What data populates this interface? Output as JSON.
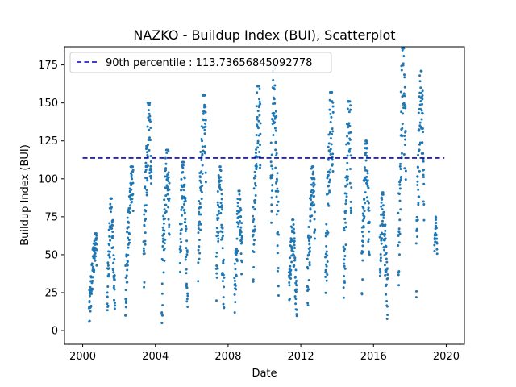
{
  "chart_data": {
    "type": "scatter",
    "title": "NAZKO - Buildup Index (BUI), Scatterplot",
    "xlabel": "Date",
    "ylabel": "Buildup Index (BUI)",
    "xlim": [
      1999.0,
      2021.0
    ],
    "ylim": [
      -9.0,
      187.0
    ],
    "x_ticks": [
      2000,
      2004,
      2008,
      2012,
      2016,
      2020
    ],
    "x_tick_labels": [
      "2000",
      "2004",
      "2008",
      "2012",
      "2016",
      "2020"
    ],
    "y_ticks": [
      0,
      25,
      50,
      75,
      100,
      125,
      150,
      175
    ],
    "y_tick_labels": [
      "0",
      "25",
      "50",
      "75",
      "100",
      "125",
      "150",
      "175"
    ],
    "point_color": "#1f77b4",
    "reference_line": {
      "label": "90th percentile : 113.73656845092778",
      "y": 113.73656845092778,
      "x_range": [
        2000.0,
        2019.9
      ],
      "color": "#0000bb",
      "style": "dashed"
    },
    "legend_position": "top-left",
    "seasons": [
      {
        "year": 2000,
        "start": 2000.35,
        "end": 2000.78,
        "min": 1,
        "max": 64,
        "peak": 0.85
      },
      {
        "year": 2001,
        "start": 2001.35,
        "end": 2001.78,
        "min": 5,
        "max": 87,
        "peak": 0.5
      },
      {
        "year": 2002,
        "start": 2002.35,
        "end": 2002.78,
        "min": 10,
        "max": 108,
        "peak": 0.8
      },
      {
        "year": 2003,
        "start": 2003.35,
        "end": 2003.78,
        "min": 24,
        "max": 150,
        "peak": 0.65
      },
      {
        "year": 2004,
        "start": 2004.35,
        "end": 2004.78,
        "min": 5,
        "max": 119,
        "peak": 0.7
      },
      {
        "year": 2005,
        "start": 2005.35,
        "end": 2005.78,
        "min": 11,
        "max": 111,
        "peak": 0.4
      },
      {
        "year": 2006,
        "start": 2006.35,
        "end": 2006.78,
        "min": 30,
        "max": 155,
        "peak": 0.75
      },
      {
        "year": 2007,
        "start": 2007.35,
        "end": 2007.78,
        "min": 0,
        "max": 108,
        "peak": 0.45
      },
      {
        "year": 2008,
        "start": 2008.35,
        "end": 2008.78,
        "min": 7,
        "max": 92,
        "peak": 0.6
      },
      {
        "year": 2009,
        "start": 2009.35,
        "end": 2009.78,
        "min": 29,
        "max": 161,
        "peak": 0.75
      },
      {
        "year": 2010,
        "start": 2010.35,
        "end": 2010.78,
        "min": 21,
        "max": 177,
        "peak": 0.4
      },
      {
        "year": 2011,
        "start": 2011.35,
        "end": 2011.78,
        "min": 3,
        "max": 73,
        "peak": 0.45
      },
      {
        "year": 2012,
        "start": 2012.35,
        "end": 2012.78,
        "min": 9,
        "max": 108,
        "peak": 0.7
      },
      {
        "year": 2013,
        "start": 2013.35,
        "end": 2013.78,
        "min": 7,
        "max": 157,
        "peak": 0.75
      },
      {
        "year": 2014,
        "start": 2014.35,
        "end": 2014.78,
        "min": 9,
        "max": 151,
        "peak": 0.7
      },
      {
        "year": 2015,
        "start": 2015.35,
        "end": 2015.78,
        "min": 24,
        "max": 125,
        "peak": 0.55
      },
      {
        "year": 2016,
        "start": 2016.35,
        "end": 2016.78,
        "min": 3,
        "max": 91,
        "peak": 0.35
      },
      {
        "year": 2017,
        "start": 2017.35,
        "end": 2017.78,
        "min": 12,
        "max": 186,
        "peak": 0.65
      },
      {
        "year": 2018,
        "start": 2018.35,
        "end": 2018.78,
        "min": 22,
        "max": 171,
        "peak": 0.6
      },
      {
        "year": 2019,
        "start": 2019.35,
        "end": 2019.5,
        "min": 48,
        "max": 75,
        "peak": 0.5
      }
    ]
  }
}
